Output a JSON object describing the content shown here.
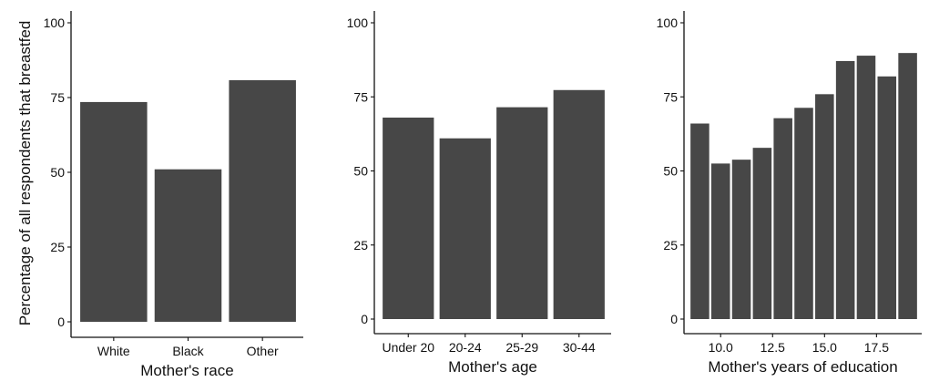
{
  "figure": {
    "ylabel": "Percentage of all respondents that breastfed"
  },
  "style": {
    "bar_color": "#474747",
    "axis_color": "#111111",
    "background": "#ffffff"
  },
  "chart_data": [
    {
      "type": "bar",
      "xlabel": "Mother's race",
      "categories": [
        "White",
        "Black",
        "Other"
      ],
      "values": [
        73.5,
        51,
        80.8
      ],
      "ylim": [
        0,
        100
      ],
      "yticks": [
        0,
        25,
        50,
        75,
        100
      ],
      "grid": false
    },
    {
      "type": "bar",
      "xlabel": "Mother's age",
      "categories": [
        "Under 20",
        "20-24",
        "25-29",
        "30-44"
      ],
      "values": [
        68,
        61,
        71.5,
        77.3
      ],
      "ylim": [
        0,
        100
      ],
      "yticks": [
        0,
        25,
        50,
        75,
        100
      ],
      "grid": false
    },
    {
      "type": "bar",
      "xlabel": "Mother's years of education",
      "x": [
        9,
        10,
        11,
        12,
        13,
        14,
        15,
        16,
        17,
        18,
        19
      ],
      "values": [
        66,
        52.5,
        53.8,
        57.8,
        67.8,
        71.3,
        75.9,
        87.1,
        88.9,
        81.9,
        89.8
      ],
      "xticks": [
        10.0,
        12.5,
        15.0,
        17.5
      ],
      "xtick_labels": [
        "10.0",
        "12.5",
        "15.0",
        "17.5"
      ],
      "ylim": [
        0,
        100
      ],
      "yticks": [
        0,
        25,
        50,
        75,
        100
      ],
      "grid": false
    }
  ]
}
